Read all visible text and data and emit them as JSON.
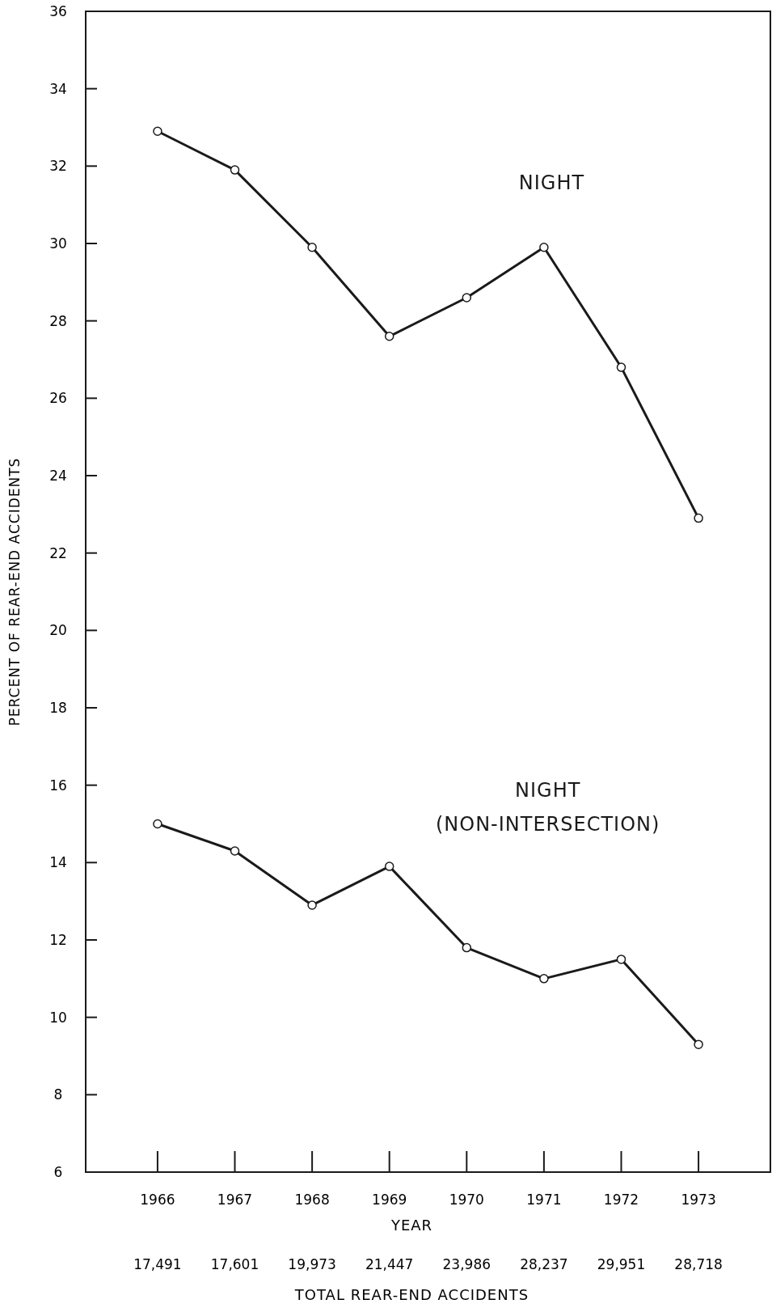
{
  "chart_data": {
    "type": "line",
    "xlabel": "YEAR",
    "ylabel": "PERCENT OF REAR-END ACCIDENTS",
    "categories": [
      "1966",
      "1967",
      "1968",
      "1969",
      "1970",
      "1971",
      "1972",
      "1973"
    ],
    "series": [
      {
        "name": "NIGHT",
        "color": "#1a1a1a",
        "values": [
          32.9,
          31.9,
          29.9,
          27.6,
          28.6,
          29.9,
          26.8,
          22.9
        ]
      },
      {
        "name": "NIGHT (NON-INTERSECTION)",
        "color": "#1a1a1a",
        "values": [
          15.0,
          14.3,
          12.9,
          13.9,
          11.8,
          11.0,
          11.5,
          9.3
        ]
      }
    ],
    "ylim": [
      6,
      36
    ],
    "yticks": [
      6,
      8,
      10,
      12,
      14,
      16,
      18,
      20,
      22,
      24,
      26,
      28,
      30,
      32,
      34,
      36
    ],
    "grid": false,
    "marker": "circle",
    "line_style": "solid",
    "annotations": [
      "17,491",
      "17,601",
      "19,973",
      "21,447",
      "23,986",
      "28,237",
      "29,951",
      "28,718",
      "TOTAL REAR-END ACCIDENTS"
    ]
  }
}
